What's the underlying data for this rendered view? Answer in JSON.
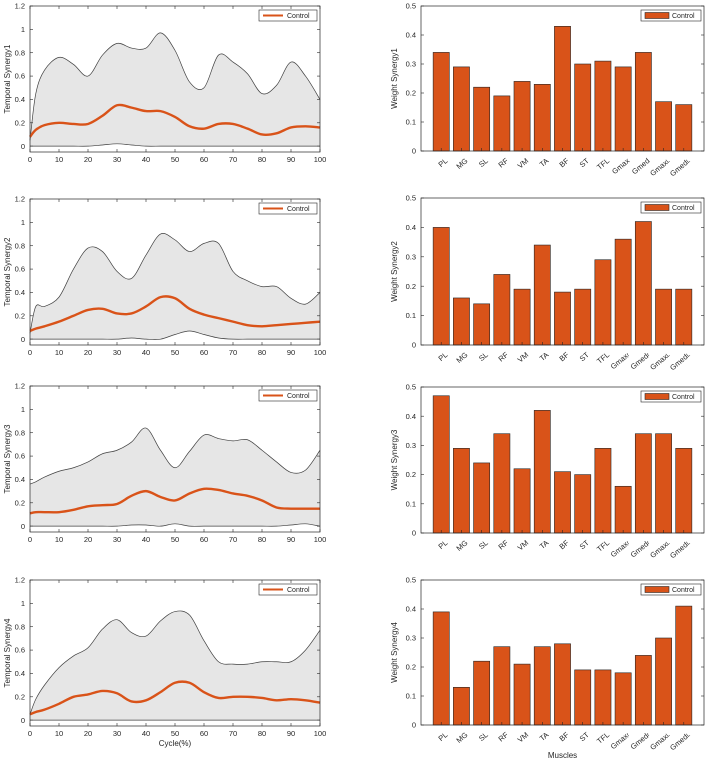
{
  "figure": {
    "x_axis_title": "Cycle(%)",
    "muscles_axis_title": "Muscles"
  },
  "colors": {
    "curve": "#D95319",
    "band_fill": "#E6E6E6",
    "band_edge": "#404040",
    "bar": "#D95319",
    "bar_edge": "#262626"
  },
  "chart_data": [
    {
      "type": "area",
      "title": "",
      "ylabel": "Temporal Synergy1",
      "xlabel": "",
      "legend": [
        "Control"
      ],
      "legend_position": "top-right",
      "xlim": [
        0,
        100
      ],
      "ylim": [
        -0.05,
        1.2
      ],
      "xticks": [
        0,
        10,
        20,
        30,
        40,
        50,
        60,
        70,
        80,
        90,
        100
      ],
      "yticks": [
        0,
        0.2,
        0.4,
        0.6,
        0.8,
        1,
        1.2
      ],
      "x": [
        0,
        2,
        5,
        10,
        15,
        20,
        25,
        30,
        35,
        40,
        45,
        50,
        55,
        60,
        65,
        70,
        75,
        80,
        85,
        90,
        95,
        100
      ],
      "series": [
        {
          "name": "Control",
          "values": [
            0.08,
            0.14,
            0.18,
            0.2,
            0.19,
            0.19,
            0.26,
            0.35,
            0.33,
            0.3,
            0.3,
            0.25,
            0.17,
            0.15,
            0.19,
            0.19,
            0.15,
            0.1,
            0.11,
            0.16,
            0.17,
            0.16
          ]
        },
        {
          "name": "upper bound",
          "values": [
            0.05,
            0.45,
            0.65,
            0.76,
            0.7,
            0.6,
            0.78,
            0.88,
            0.84,
            0.84,
            0.97,
            0.82,
            0.55,
            0.5,
            0.78,
            0.72,
            0.62,
            0.45,
            0.52,
            0.72,
            0.6,
            0.4
          ]
        },
        {
          "name": "lower bound",
          "values": [
            0,
            0,
            0,
            0,
            0,
            0,
            0.01,
            0.02,
            0.01,
            0,
            0,
            0,
            0,
            0,
            0,
            0,
            0,
            0,
            0,
            0,
            0,
            0
          ]
        }
      ]
    },
    {
      "type": "bar",
      "title": "",
      "ylabel": "Weight Synergy1",
      "xlabel": "",
      "legend": [
        "Control"
      ],
      "legend_position": "top-right",
      "ylim": [
        0,
        0.5
      ],
      "yticks": [
        0,
        0.1,
        0.2,
        0.3,
        0.4,
        0.5
      ],
      "categories": [
        "PL",
        "MG",
        "SL",
        "RF",
        "VM",
        "TA",
        "BF",
        "ST",
        "TFL",
        "Gmax",
        "Gmed",
        "Gmax",
        "Gmed"
      ],
      "category_subscripts": [
        "",
        "",
        "",
        "",
        "",
        "",
        "",
        "",
        "",
        "",
        "",
        "L",
        "L"
      ],
      "values": [
        0.34,
        0.29,
        0.22,
        0.19,
        0.24,
        0.23,
        0.43,
        0.3,
        0.31,
        0.29,
        0.34,
        0.17,
        0.16
      ]
    },
    {
      "type": "area",
      "title": "",
      "ylabel": "Temporal Synergy2",
      "xlabel": "",
      "legend": [
        "Control"
      ],
      "legend_position": "top-right",
      "xlim": [
        0,
        100
      ],
      "ylim": [
        -0.05,
        1.2
      ],
      "xticks": [
        0,
        10,
        20,
        30,
        40,
        50,
        60,
        70,
        80,
        90,
        100
      ],
      "yticks": [
        0,
        0.2,
        0.4,
        0.6,
        0.8,
        1,
        1.2
      ],
      "x": [
        0,
        2,
        5,
        10,
        15,
        20,
        25,
        30,
        35,
        40,
        45,
        50,
        55,
        60,
        65,
        70,
        75,
        80,
        85,
        90,
        95,
        100
      ],
      "series": [
        {
          "name": "Control",
          "values": [
            0.07,
            0.09,
            0.11,
            0.15,
            0.2,
            0.25,
            0.26,
            0.22,
            0.22,
            0.28,
            0.36,
            0.35,
            0.26,
            0.21,
            0.18,
            0.15,
            0.12,
            0.11,
            0.12,
            0.13,
            0.14,
            0.15
          ]
        },
        {
          "name": "upper bound",
          "values": [
            0.05,
            0.28,
            0.28,
            0.36,
            0.6,
            0.78,
            0.75,
            0.58,
            0.52,
            0.72,
            0.9,
            0.85,
            0.75,
            0.82,
            0.82,
            0.58,
            0.5,
            0.45,
            0.45,
            0.35,
            0.3,
            0.4
          ]
        },
        {
          "name": "lower bound",
          "values": [
            0,
            0,
            0,
            0,
            0,
            0,
            0,
            0,
            0.01,
            0,
            0,
            0.04,
            0.07,
            0.04,
            0.01,
            0,
            0,
            0,
            0,
            0,
            0,
            0
          ]
        }
      ]
    },
    {
      "type": "bar",
      "title": "",
      "ylabel": "Weight Synergy2",
      "xlabel": "",
      "legend": [
        "Control"
      ],
      "legend_position": "top-right",
      "ylim": [
        0,
        0.5
      ],
      "yticks": [
        0,
        0.1,
        0.2,
        0.3,
        0.4,
        0.5
      ],
      "categories": [
        "PL",
        "MG",
        "SL",
        "RF",
        "VM",
        "TA",
        "BF",
        "ST",
        "TFL",
        "Gmax",
        "Gmed",
        "Gmax",
        "Gmed"
      ],
      "category_subscripts": [
        "",
        "",
        "",
        "",
        "",
        "",
        "",
        "",
        "",
        "r",
        "r",
        "L",
        "L"
      ],
      "values": [
        0.4,
        0.16,
        0.14,
        0.24,
        0.19,
        0.34,
        0.18,
        0.19,
        0.29,
        0.36,
        0.42,
        0.19,
        0.19
      ]
    },
    {
      "type": "area",
      "title": "",
      "ylabel": "Temporal Synergy3",
      "xlabel": "",
      "legend": [
        "Control"
      ],
      "legend_position": "top-right",
      "xlim": [
        0,
        100
      ],
      "ylim": [
        -0.05,
        1.2
      ],
      "xticks": [
        0,
        10,
        20,
        30,
        40,
        50,
        60,
        70,
        80,
        90,
        100
      ],
      "yticks": [
        0,
        0.2,
        0.4,
        0.6,
        0.8,
        1,
        1.2
      ],
      "x": [
        0,
        2,
        5,
        10,
        15,
        20,
        25,
        30,
        35,
        40,
        45,
        50,
        55,
        60,
        65,
        70,
        75,
        80,
        85,
        90,
        95,
        100
      ],
      "series": [
        {
          "name": "Control",
          "values": [
            0.11,
            0.12,
            0.12,
            0.12,
            0.14,
            0.17,
            0.18,
            0.19,
            0.26,
            0.3,
            0.25,
            0.22,
            0.28,
            0.32,
            0.31,
            0.28,
            0.26,
            0.22,
            0.16,
            0.15,
            0.15,
            0.15
          ]
        },
        {
          "name": "upper bound",
          "values": [
            0.36,
            0.38,
            0.42,
            0.47,
            0.5,
            0.55,
            0.62,
            0.65,
            0.72,
            0.84,
            0.65,
            0.5,
            0.64,
            0.78,
            0.75,
            0.73,
            0.74,
            0.65,
            0.55,
            0.46,
            0.48,
            0.65
          ]
        },
        {
          "name": "lower bound",
          "values": [
            0,
            0,
            0,
            0,
            0,
            0,
            0,
            0,
            0.01,
            0.01,
            0,
            0.02,
            0,
            0,
            0,
            0,
            0,
            0,
            0,
            0.01,
            0.02,
            0
          ]
        }
      ]
    },
    {
      "type": "bar",
      "title": "",
      "ylabel": "Weight Synergy3",
      "xlabel": "",
      "legend": [
        "Control"
      ],
      "legend_position": "top-right",
      "ylim": [
        0,
        0.5
      ],
      "yticks": [
        0,
        0.1,
        0.2,
        0.3,
        0.4,
        0.5
      ],
      "categories": [
        "PL",
        "MG",
        "SL",
        "RF",
        "VM",
        "TA",
        "BF",
        "ST",
        "TFL",
        "Gmax",
        "Gmed",
        "Gmax",
        "Gmed"
      ],
      "category_subscripts": [
        "",
        "",
        "",
        "",
        "",
        "",
        "",
        "",
        "",
        "r",
        "r",
        "L",
        "L"
      ],
      "values": [
        0.47,
        0.29,
        0.24,
        0.34,
        0.22,
        0.42,
        0.21,
        0.2,
        0.29,
        0.16,
        0.34,
        0.34,
        0.29
      ]
    },
    {
      "type": "area",
      "title": "",
      "ylabel": "Temporal Synergy4",
      "xlabel": "Cycle(%)",
      "legend": [
        "Control"
      ],
      "legend_position": "top-right",
      "xlim": [
        0,
        100
      ],
      "ylim": [
        -0.05,
        1.2
      ],
      "xticks": [
        0,
        10,
        20,
        30,
        40,
        50,
        60,
        70,
        80,
        90,
        100
      ],
      "yticks": [
        0,
        0.2,
        0.4,
        0.6,
        0.8,
        1,
        1.2
      ],
      "x": [
        0,
        2,
        5,
        10,
        15,
        20,
        25,
        30,
        35,
        40,
        45,
        50,
        55,
        60,
        65,
        70,
        75,
        80,
        85,
        90,
        95,
        100
      ],
      "series": [
        {
          "name": "Control",
          "values": [
            0.05,
            0.07,
            0.09,
            0.14,
            0.2,
            0.22,
            0.25,
            0.23,
            0.16,
            0.17,
            0.24,
            0.32,
            0.32,
            0.24,
            0.19,
            0.2,
            0.2,
            0.19,
            0.17,
            0.18,
            0.17,
            0.15
          ]
        },
        {
          "name": "upper bound",
          "values": [
            0.05,
            0.18,
            0.3,
            0.45,
            0.55,
            0.62,
            0.78,
            0.86,
            0.75,
            0.72,
            0.85,
            0.93,
            0.9,
            0.68,
            0.5,
            0.48,
            0.48,
            0.5,
            0.5,
            0.5,
            0.6,
            0.77
          ]
        },
        {
          "name": "lower bound",
          "values": [
            0,
            0,
            0,
            0,
            0,
            0,
            0,
            0,
            0,
            0,
            0,
            0,
            0,
            0,
            0,
            0,
            0,
            0,
            0,
            0,
            0,
            0
          ]
        }
      ]
    },
    {
      "type": "bar",
      "title": "",
      "ylabel": "Weight Synergy4",
      "xlabel": "Muscles",
      "legend": [
        "Control"
      ],
      "legend_position": "top-right",
      "ylim": [
        0,
        0.5
      ],
      "yticks": [
        0,
        0.1,
        0.2,
        0.3,
        0.4,
        0.5
      ],
      "categories": [
        "PL",
        "MG",
        "SL",
        "RF",
        "VM",
        "TA",
        "BF",
        "ST",
        "TFL",
        "Gmax",
        "Gmed",
        "Gmax",
        "Gmed"
      ],
      "category_subscripts": [
        "",
        "",
        "",
        "",
        "",
        "",
        "",
        "",
        "",
        "r",
        "r",
        "L",
        "L"
      ],
      "values": [
        0.39,
        0.13,
        0.22,
        0.27,
        0.21,
        0.27,
        0.28,
        0.19,
        0.19,
        0.18,
        0.24,
        0.3,
        0.41
      ]
    }
  ]
}
